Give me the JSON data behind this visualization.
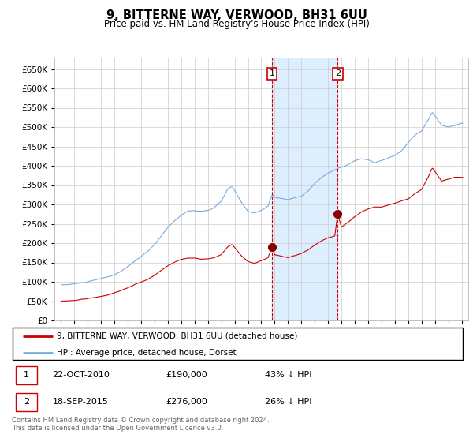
{
  "title": "9, BITTERNE WAY, VERWOOD, BH31 6UU",
  "subtitle": "Price paid vs. HM Land Registry's House Price Index (HPI)",
  "legend_property": "9, BITTERNE WAY, VERWOOD, BH31 6UU (detached house)",
  "legend_hpi": "HPI: Average price, detached house, Dorset",
  "footer": "Contains HM Land Registry data © Crown copyright and database right 2024.\nThis data is licensed under the Open Government Licence v3.0.",
  "sale1_date": "22-OCT-2010",
  "sale1_price": "£190,000",
  "sale1_hpi": "43% ↓ HPI",
  "sale1_year": 2010.8,
  "sale1_value": 190000,
  "sale2_date": "18-SEP-2015",
  "sale2_price": "£276,000",
  "sale2_hpi": "26% ↓ HPI",
  "sale2_year": 2015.72,
  "sale2_value": 276000,
  "property_color": "#cc0000",
  "hpi_color": "#7aaadd",
  "shade_color": "#ddeeff",
  "ylim": [
    0,
    680000
  ],
  "yticks": [
    0,
    50000,
    100000,
    150000,
    200000,
    250000,
    300000,
    350000,
    400000,
    450000,
    500000,
    550000,
    600000,
    650000
  ],
  "xlim": [
    1994.5,
    2025.5
  ]
}
